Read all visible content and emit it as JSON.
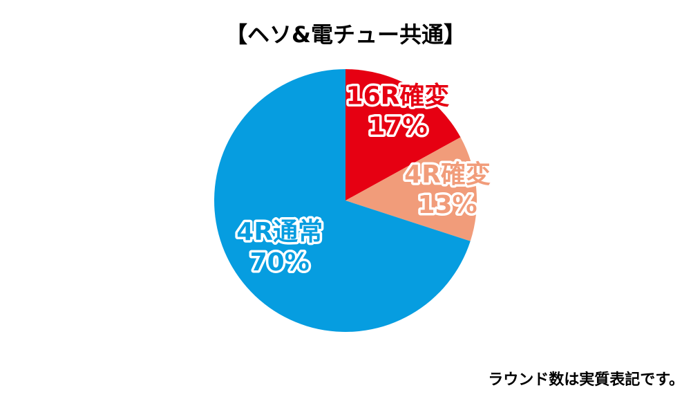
{
  "chart_data": {
    "type": "pie",
    "title": "【ヘソ&電チュー共通】",
    "categories": [
      "16R確変",
      "4R確変",
      "4R通常"
    ],
    "values": [
      17,
      13,
      70
    ],
    "value_labels": [
      "17%",
      "13%",
      "70%"
    ],
    "colors": [
      "#e60012",
      "#f19c7a",
      "#069de0"
    ],
    "start_angle": "top",
    "direction": "clockwise",
    "annotation": "ラウンド数は実質表記です。"
  }
}
